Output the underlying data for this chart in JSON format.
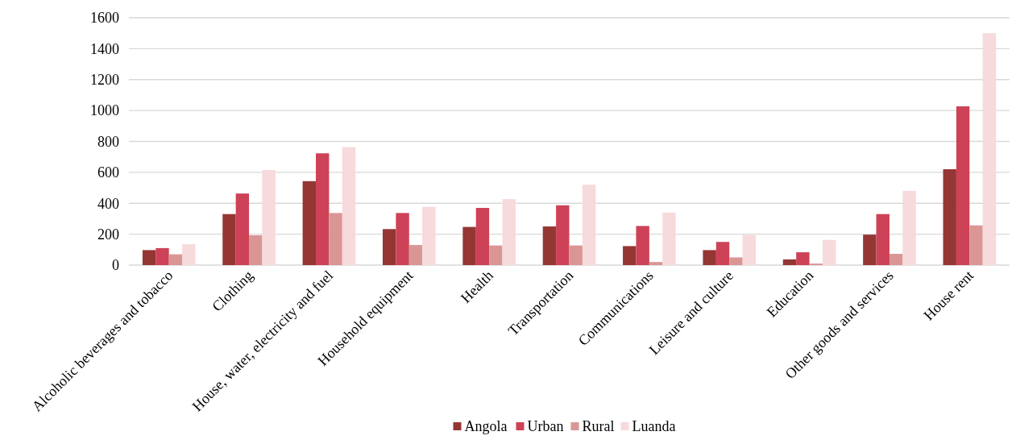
{
  "chart_data": {
    "type": "bar",
    "categories": [
      "Alcoholic beverages and tobacco",
      "Clothing",
      "House, water, electricity and fuel",
      "Household equipment",
      "Health",
      "Transportation",
      "Communications",
      "Leisure and culture",
      "Education",
      "Other goods and services",
      "House rent"
    ],
    "series": [
      {
        "name": "Angola",
        "color": "#943634",
        "values": [
          97,
          330,
          543,
          233,
          247,
          250,
          123,
          97,
          37,
          197,
          620
        ]
      },
      {
        "name": "Urban",
        "color": "#cd4257",
        "values": [
          110,
          463,
          723,
          337,
          370,
          387,
          253,
          150,
          83,
          330,
          1027
        ]
      },
      {
        "name": "Rural",
        "color": "#da9694",
        "values": [
          70,
          193,
          337,
          130,
          127,
          127,
          20,
          50,
          10,
          73,
          257
        ]
      },
      {
        "name": "Luanda",
        "color": "#f7dadb",
        "values": [
          135,
          615,
          763,
          377,
          427,
          520,
          340,
          195,
          163,
          480,
          1500
        ]
      }
    ],
    "ylim": [
      0,
      1600
    ],
    "yticks": [
      0,
      200,
      400,
      600,
      800,
      1000,
      1200,
      1400,
      1600
    ],
    "grid": "y",
    "legend": "bottom"
  }
}
